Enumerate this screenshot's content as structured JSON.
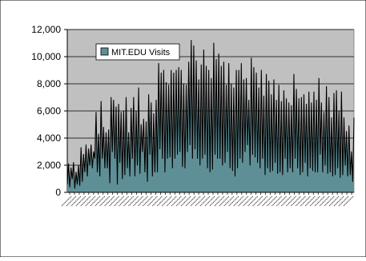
{
  "chart_data": {
    "type": "area",
    "title": "",
    "xlabel": "",
    "ylabel": "",
    "ylim": [
      0,
      12000
    ],
    "yticks": [
      0,
      2000,
      4000,
      6000,
      8000,
      10000,
      12000
    ],
    "ytick_labels": [
      "0",
      "2,000",
      "4,000",
      "6,000",
      "8,000",
      "10,000",
      "12,000"
    ],
    "grid": true,
    "legend": "top-left",
    "plot_background": "#c0c0c0",
    "fill_color": "#5f8f96",
    "line_color": "#000000",
    "series": [
      {
        "name": "MIT.EDU Visits",
        "values": [
          600,
          2100,
          400,
          1800,
          1000,
          2200,
          300,
          1500,
          600,
          2000,
          500,
          3300,
          800,
          2800,
          1500,
          3500,
          1200,
          3200,
          2000,
          3500,
          1800,
          3000,
          2500,
          5900,
          1500,
          4300,
          1200,
          6700,
          2500,
          4800,
          1800,
          4400,
          1800,
          4600,
          700,
          7000,
          3000,
          6800,
          2500,
          6300,
          600,
          6500,
          2200,
          5900,
          1000,
          6000,
          1300,
          7000,
          1800,
          4400,
          1200,
          6200,
          2500,
          7000,
          1200,
          6000,
          2000,
          7700,
          1400,
          5000,
          3000,
          5400,
          1500,
          5200,
          800,
          7200,
          2800,
          6600,
          1200,
          5800,
          1500,
          6800,
          1500,
          9500,
          3200,
          8800,
          2500,
          9000,
          1500,
          8100,
          2500,
          7900,
          2600,
          9000,
          1800,
          8800,
          2500,
          9000,
          2800,
          9200,
          3000,
          9000,
          1900,
          8000,
          1800,
          7900,
          3000,
          9600,
          3500,
          11200,
          2500,
          10800,
          3200,
          9700,
          2500,
          8300,
          2000,
          9400,
          2500,
          10500,
          2800,
          9300,
          1800,
          9000,
          1500,
          8400,
          1700,
          11000,
          2800,
          9800,
          2500,
          10200,
          2500,
          9300,
          2000,
          9600,
          2200,
          7900,
          3000,
          9500,
          1800,
          8000,
          1600,
          7700,
          1200,
          9000,
          1800,
          9000,
          2500,
          9500,
          2200,
          8300,
          3000,
          8400,
          3500,
          6800,
          2000,
          9900,
          2800,
          9200,
          2600,
          8800,
          2200,
          7700,
          1800,
          9000,
          2500,
          7100,
          1300,
          8700,
          1800,
          8200,
          1500,
          7200,
          1600,
          8300,
          2200,
          6800,
          1400,
          7900,
          1500,
          6700,
          1300,
          7500,
          2500,
          6900,
          1500,
          6600,
          1800,
          6400,
          1500,
          8700,
          2500,
          7600,
          1800,
          6900,
          1300,
          7000,
          1500,
          7200,
          2200,
          6500,
          1200,
          7400,
          1800,
          6600,
          1600,
          7400,
          1500,
          6800,
          1500,
          8400,
          2800,
          6600,
          1500,
          5900,
          2000,
          7800,
          1400,
          7000,
          1500,
          5500,
          1200,
          7300,
          1300,
          7500,
          1800,
          6000,
          1100,
          7400,
          1300,
          5500,
          2000,
          4500,
          1200,
          4900,
          1300,
          3000,
          800,
          5500
        ]
      }
    ],
    "x_count": 240,
    "x_tick_count": 60
  }
}
